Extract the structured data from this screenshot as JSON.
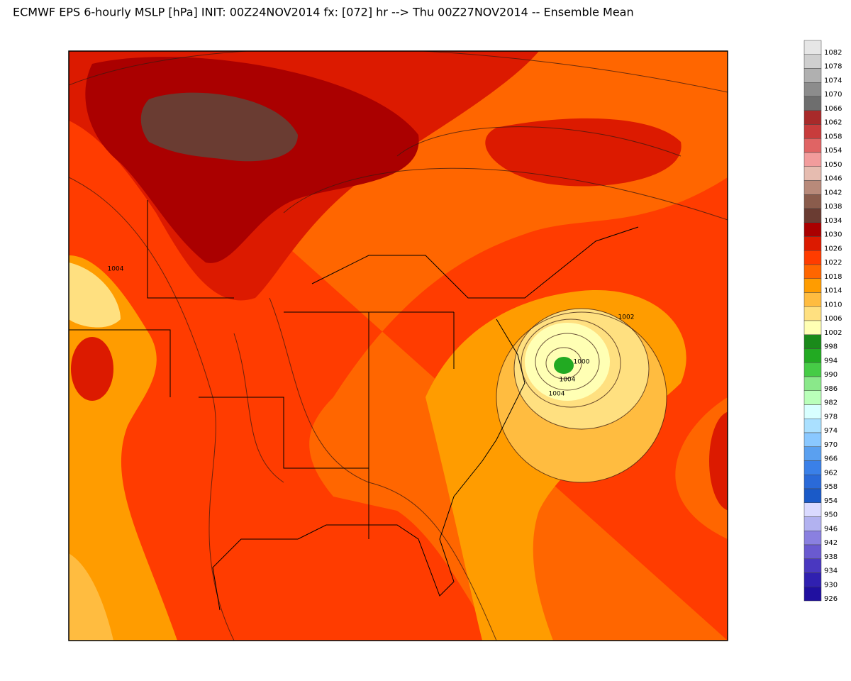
{
  "header": {
    "title": "ECMWF EPS 6-hourly MSLP [hPa] INIT: 00Z24NOV2014 fx: [072] hr --> Thu 00Z27NOV2014 -- Ensemble Mean"
  },
  "map_labels": [
    "1004",
    "1002",
    "1004",
    "1000",
    "1004"
  ],
  "colorbar": {
    "entries": [
      {
        "value": 1082,
        "color": "#e6e6e6"
      },
      {
        "value": 1078,
        "color": "#cfcfcf"
      },
      {
        "value": 1074,
        "color": "#b0b0b0"
      },
      {
        "value": 1070,
        "color": "#8c8c8c"
      },
      {
        "value": 1066,
        "color": "#6e6e6e"
      },
      {
        "value": 1062,
        "color": "#a82a2a"
      },
      {
        "value": 1058,
        "color": "#c83c3c"
      },
      {
        "value": 1054,
        "color": "#e06464"
      },
      {
        "value": 1050,
        "color": "#f29c9c"
      },
      {
        "value": 1046,
        "color": "#e6bcb0"
      },
      {
        "value": 1042,
        "color": "#b88a7a"
      },
      {
        "value": 1038,
        "color": "#8a5c4c"
      },
      {
        "value": 1034,
        "color": "#6a3c32"
      },
      {
        "value": 1030,
        "color": "#aa0000"
      },
      {
        "value": 1026,
        "color": "#dc1a00"
      },
      {
        "value": 1022,
        "color": "#ff3c00"
      },
      {
        "value": 1018,
        "color": "#ff6600"
      },
      {
        "value": 1014,
        "color": "#ff9c00"
      },
      {
        "value": 1010,
        "color": "#ffbc40"
      },
      {
        "value": 1006,
        "color": "#ffe080"
      },
      {
        "value": 1002,
        "color": "#ffffb4"
      },
      {
        "value": 998,
        "color": "#1a8a1a"
      },
      {
        "value": 994,
        "color": "#22aa22"
      },
      {
        "value": 990,
        "color": "#46cc46"
      },
      {
        "value": 986,
        "color": "#8ae88a"
      },
      {
        "value": 982,
        "color": "#baffba"
      },
      {
        "value": 978,
        "color": "#d8ffff"
      },
      {
        "value": 974,
        "color": "#aae0ff"
      },
      {
        "value": 970,
        "color": "#8ac8ff"
      },
      {
        "value": 966,
        "color": "#5aa0f0"
      },
      {
        "value": 962,
        "color": "#3a80e8"
      },
      {
        "value": 958,
        "color": "#2a6ad8"
      },
      {
        "value": 954,
        "color": "#1a5ac8"
      },
      {
        "value": 950,
        "color": "#dadaff"
      },
      {
        "value": 946,
        "color": "#b2b2f0"
      },
      {
        "value": 942,
        "color": "#8a80e0"
      },
      {
        "value": 938,
        "color": "#6a5ad0"
      },
      {
        "value": 934,
        "color": "#4a38c0"
      },
      {
        "value": 930,
        "color": "#3020b0"
      },
      {
        "value": 926,
        "color": "#2010a0"
      }
    ]
  }
}
